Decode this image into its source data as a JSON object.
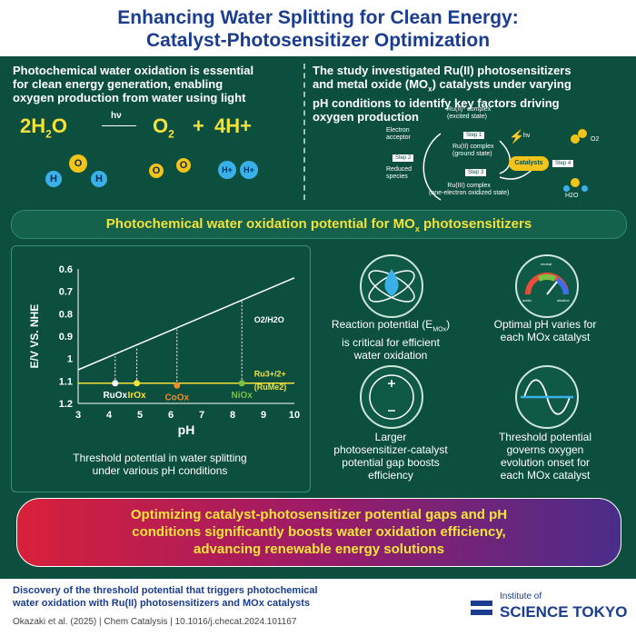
{
  "header": {
    "title_line1": "Enhancing Water Splitting for Clean Energy:",
    "title_line2": "Catalyst-Photosensitizer Optimization"
  },
  "intro_left": {
    "line1": "Photochemical water oxidation is essential",
    "line2": "for clean energy generation, enabling",
    "line3": "oxygen production from water using light",
    "equation": {
      "reactant": "2H",
      "sub2": "2",
      "reactant_end": "O",
      "light": "hν",
      "product1": "O",
      "product1_sub": "2",
      "plus": "+",
      "product2": "4H+"
    },
    "atoms": {
      "O": "O",
      "H": "H",
      "Hplus": "H+"
    }
  },
  "intro_right": {
    "line1": "The study investigated Ru(II) photosensitizers",
    "line2": "and metal oxide (MO",
    "line2_sub": "x",
    "line2_end": ") catalysts under varying",
    "line3": "pH conditions to identify key factors driving",
    "line4": "oxygen production",
    "cycle": {
      "excited": "Ru(II)* complex",
      "excited_sub": "(excited state)",
      "ground": "Ru(II) complex",
      "ground_sub": "(ground state)",
      "oxidized": "Ru(III) complex",
      "oxidized_sub": "(one-electron oxidized state)",
      "step1": "Step 1",
      "step2": "Step 2",
      "step3": "Step 3",
      "step4": "Step 4",
      "light": "hν",
      "acceptor": "Electron acceptor",
      "reduced": "Reduced species",
      "catalysts": "Catalysts",
      "o2": "O2",
      "h2o": "H2O"
    }
  },
  "banner": {
    "text": "Photochemical water oxidation potential for MO",
    "sub": "x",
    "text_end": " photosensitizers"
  },
  "chart_data": {
    "type": "line",
    "xlabel": "pH",
    "ylabel": "E/V VS. NHE",
    "xlim": [
      3,
      10
    ],
    "ylim": [
      1.2,
      0.6
    ],
    "x_ticks": [
      "3",
      "4",
      "5",
      "6",
      "7",
      "8",
      "9",
      "10"
    ],
    "y_ticks": [
      "0.6",
      "0.7",
      "0.8",
      "0.9",
      "1",
      "1.1",
      "1.2"
    ],
    "series": [
      {
        "name": "O2/H2O",
        "x": [
          3,
          10
        ],
        "y": [
          1.05,
          0.64
        ]
      },
      {
        "name": "Ru3+/2+ (RuMe2)",
        "x": [
          3,
          10
        ],
        "y": [
          1.11,
          1.11
        ]
      }
    ],
    "points": [
      {
        "label": "RuOx",
        "x": 4.2,
        "y": 1.11,
        "top": 0.99
      },
      {
        "label": "IrOx",
        "x": 4.9,
        "y": 1.11,
        "top": 0.95
      },
      {
        "label": "CoOx",
        "x": 6.2,
        "y": 1.12,
        "top": 0.87
      },
      {
        "label": "NiOx",
        "x": 8.3,
        "y": 1.11,
        "top": 0.74
      }
    ],
    "line_label": "O2/H2O",
    "ru_label": "Ru3+/2+",
    "ru_sub": "(RuMe2)"
  },
  "chart_caption": {
    "line1": "Threshold potential in water splitting",
    "line2": "under various pH conditions"
  },
  "findings": [
    {
      "icon": "water-drop-atom-icon",
      "line1": "Reaction potential (E",
      "sub": "MOx",
      "line1_end": ")",
      "line2": "is critical for efficient",
      "line3": "water oxidation"
    },
    {
      "icon": "ph-gauge-icon",
      "line1": "Optimal pH varies for",
      "line2": "each MOx catalyst",
      "line3": ""
    },
    {
      "icon": "potential-gap-icon",
      "line1": "Larger",
      "line2": "photosensitizer-catalyst",
      "line3": "potential gap boosts",
      "line4": "efficiency"
    },
    {
      "icon": "wave-threshold-icon",
      "line1": "Threshold potential",
      "line2": "governs oxygen",
      "line3": "evolution onset for",
      "line4": "each MOx catalyst"
    }
  ],
  "gauge_labels": {
    "top": "neutral",
    "left": "acidic",
    "right": "alkaline"
  },
  "conclusion": {
    "line1": "Optimizing catalyst-photosensitizer potential gaps and pH",
    "line2": "conditions significantly boosts water oxidation efficiency,",
    "line3": "advancing renewable energy solutions"
  },
  "footer": {
    "title_line1": "Discovery of the threshold potential that triggers photochemical",
    "title_line2": "water oxidation with Ru(II) photosensitizers and MOx catalysts",
    "citation": "Okazaki et al. (2025) | Chem Catalysis | 10.1016/j.checat.2024.101167",
    "logo_line1": "Institute of",
    "logo_line2": "SCIENCE TOKYO"
  },
  "colors": {
    "panel": "#0d4f3e",
    "title": "#1a3d8f",
    "yellow": "#f2e23a",
    "water_drop": "#3ab0e8"
  }
}
